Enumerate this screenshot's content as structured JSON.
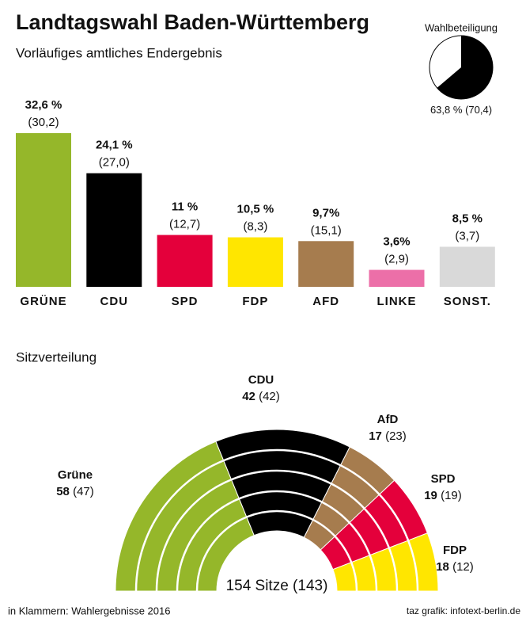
{
  "title": "Landtagswahl Baden-Württemberg",
  "subtitle": "Vorläufiges amtliches Endergebnis",
  "footer": {
    "note": "in Klammern: Wahlergebnisse 2016",
    "credit": "taz grafik: infotext-berlin.de"
  },
  "chart_data": [
    {
      "type": "bar",
      "categories": [
        "GRÜNE",
        "CDU",
        "SPD",
        "FDP",
        "AFD",
        "LINKE",
        "SONST."
      ],
      "colors": [
        "#95b72a",
        "#000000",
        "#e4003b",
        "#ffe600",
        "#a67c4e",
        "#ec6fa8",
        "#d9d9d9"
      ],
      "series": [
        {
          "values": [
            32.6,
            24.1,
            11,
            10.5,
            9.7,
            3.6,
            8.5
          ],
          "value_labels": [
            "32,6 %",
            "24,1 %",
            "11 %",
            "10,5 %",
            "9,7%",
            "3,6%",
            "8,5 %"
          ]
        },
        {
          "values": [
            30.2,
            27.0,
            12.7,
            8.3,
            15.1,
            2.9,
            3.7
          ],
          "value_labels": [
            "(30,2)",
            "(27,0)",
            "(12,7)",
            "(8,3)",
            "(15,1)",
            "(2,9)",
            "(3,7)"
          ]
        }
      ]
    },
    {
      "type": "pie",
      "title": "Wahlbeteiligung",
      "color": "#000000",
      "value": 63.8,
      "value_label": "63,8 %",
      "previous": 70.4,
      "previous_label": "(70,4)"
    },
    {
      "type": "parliament",
      "title": "Sitzverteilung",
      "categories": [
        "Grüne",
        "CDU",
        "AfD",
        "SPD",
        "FDP"
      ],
      "colors": [
        "#95b72a",
        "#000000",
        "#a67c4e",
        "#e4003b",
        "#ffe600"
      ],
      "values": [
        58,
        42,
        17,
        19,
        18
      ],
      "previous": [
        47,
        42,
        23,
        19,
        12
      ],
      "previous_labels": [
        "(47)",
        "(42)",
        "(23)",
        "(19)",
        "(12)"
      ],
      "total_label": "154 Sitze (143)"
    }
  ]
}
